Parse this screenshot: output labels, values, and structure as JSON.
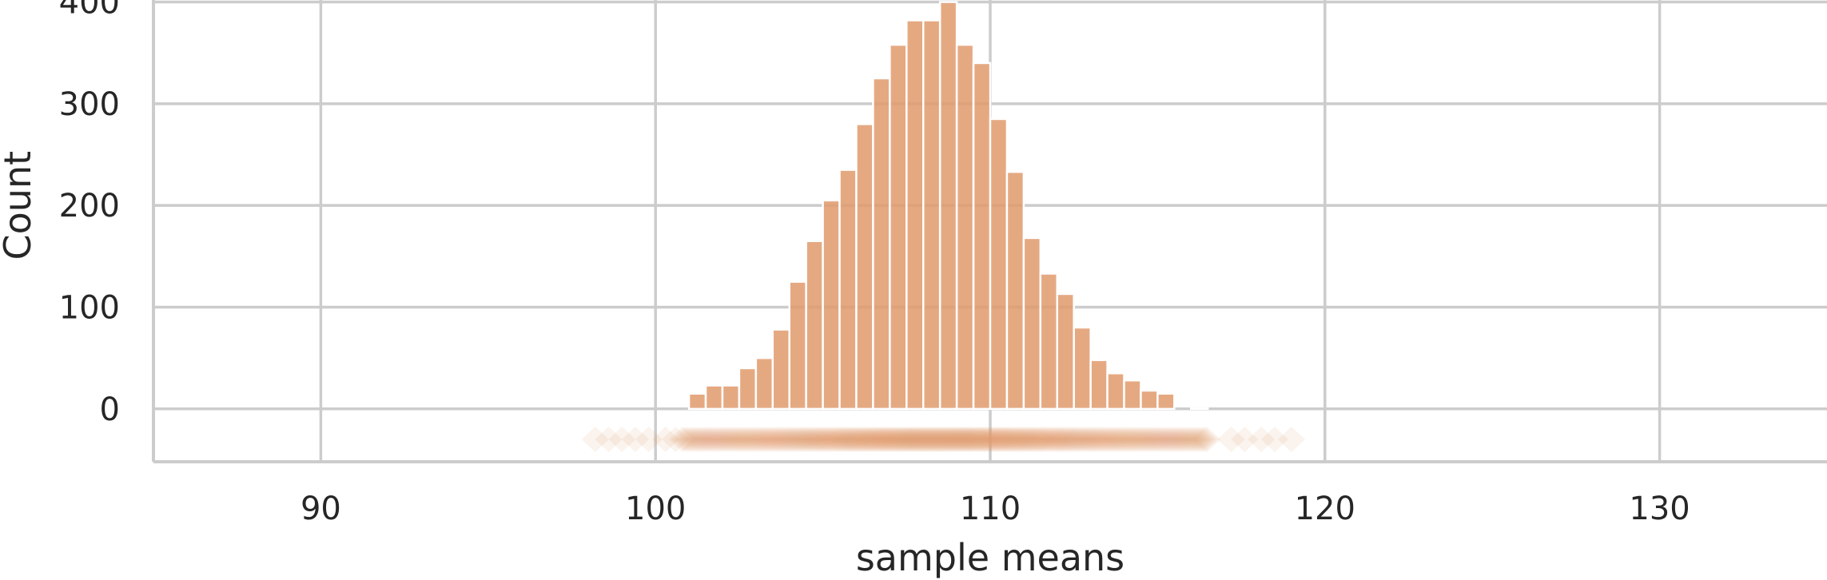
{
  "chart_data": {
    "type": "bar",
    "title": "",
    "xlabel": "sample means",
    "ylabel": "Count",
    "xlim": [
      85,
      135
    ],
    "ylim": [
      -52,
      402
    ],
    "x_ticks": [
      90,
      100,
      110,
      120,
      130
    ],
    "y_ticks": [
      0,
      100,
      200,
      300,
      400
    ],
    "grid": true,
    "bar_color": "#e09a6c",
    "marker_color": "#e09a6c",
    "bin_width": 0.5,
    "bins": [
      {
        "start": 101.0,
        "count": 15
      },
      {
        "start": 101.5,
        "count": 23
      },
      {
        "start": 102.0,
        "count": 23
      },
      {
        "start": 102.5,
        "count": 40
      },
      {
        "start": 103.0,
        "count": 50
      },
      {
        "start": 103.5,
        "count": 78
      },
      {
        "start": 104.0,
        "count": 125
      },
      {
        "start": 104.5,
        "count": 165
      },
      {
        "start": 105.0,
        "count": 205
      },
      {
        "start": 105.5,
        "count": 235
      },
      {
        "start": 106.0,
        "count": 280
      },
      {
        "start": 106.5,
        "count": 325
      },
      {
        "start": 107.0,
        "count": 358
      },
      {
        "start": 107.5,
        "count": 382
      },
      {
        "start": 108.0,
        "count": 382
      },
      {
        "start": 108.5,
        "count": 400
      },
      {
        "start": 109.0,
        "count": 358
      },
      {
        "start": 109.5,
        "count": 340
      },
      {
        "start": 110.0,
        "count": 285
      },
      {
        "start": 110.5,
        "count": 233
      },
      {
        "start": 111.0,
        "count": 168
      },
      {
        "start": 111.5,
        "count": 133
      },
      {
        "start": 112.0,
        "count": 113
      },
      {
        "start": 112.5,
        "count": 80
      },
      {
        "start": 113.0,
        "count": 48
      },
      {
        "start": 113.5,
        "count": 35
      },
      {
        "start": 114.0,
        "count": 28
      },
      {
        "start": 114.5,
        "count": 18
      },
      {
        "start": 115.0,
        "count": 15
      },
      {
        "start": 115.5,
        "count": 0
      },
      {
        "start": 116.0,
        "count": 2
      }
    ],
    "rug_markers": {
      "y": -30,
      "x": [
        98.2,
        98.6,
        99.0,
        99.4,
        99.8,
        100.3,
        100.6,
        117.2,
        117.6,
        118.1,
        118.5,
        119.0
      ],
      "dense_range": [
        100.8,
        116.5
      ]
    }
  }
}
